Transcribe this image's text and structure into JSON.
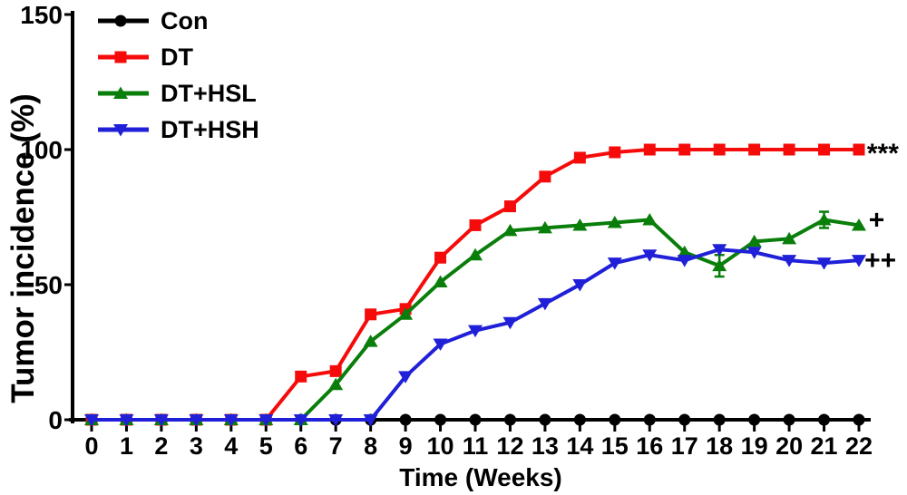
{
  "chart_data": {
    "type": "line",
    "title": "",
    "xlabel": "Time (Weeks)",
    "ylabel": "Tumor incidence (%)",
    "xlim": [
      0,
      22
    ],
    "ylim": [
      0,
      150
    ],
    "y_ticks": [
      0,
      50,
      100,
      150
    ],
    "x": [
      0,
      1,
      2,
      3,
      4,
      5,
      6,
      7,
      8,
      9,
      10,
      11,
      12,
      13,
      14,
      15,
      16,
      17,
      18,
      19,
      20,
      21,
      22
    ],
    "grid": false,
    "legend_position": "top-left",
    "background_color": "#FFFFFF",
    "axis_color": "#000000",
    "series": [
      {
        "name": "Con",
        "color": "#000000",
        "marker": "circle",
        "values": [
          0,
          0,
          0,
          0,
          0,
          0,
          0,
          0,
          0,
          0,
          0,
          0,
          0,
          0,
          0,
          0,
          0,
          0,
          0,
          0,
          0,
          0,
          0
        ]
      },
      {
        "name": "DT",
        "color": "#F60B0B",
        "marker": "square",
        "values": [
          0,
          0,
          0,
          0,
          0,
          0,
          16,
          18,
          39,
          41,
          60,
          72,
          79,
          90,
          97,
          99,
          100,
          100,
          100,
          100,
          100,
          100,
          100
        ]
      },
      {
        "name": "DT+HSL",
        "color": "#097E0A",
        "marker": "triangle-up",
        "values": [
          0,
          0,
          0,
          0,
          0,
          0,
          0,
          13,
          29,
          39,
          51,
          61,
          70,
          71,
          72,
          73,
          74,
          62,
          57,
          66,
          67,
          74,
          72
        ],
        "error_bars": [
          {
            "x": 18,
            "up": 4,
            "down": 4
          },
          {
            "x": 21,
            "up": 3,
            "down": 3
          }
        ]
      },
      {
        "name": "DT+HSH",
        "color": "#2020D8",
        "marker": "triangle-down",
        "values": [
          0,
          0,
          0,
          0,
          0,
          0,
          0,
          0,
          0,
          16,
          28,
          33,
          36,
          43,
          50,
          58,
          61,
          59,
          63,
          62,
          59,
          58,
          59
        ]
      }
    ],
    "annotations": [
      {
        "text": "***",
        "x": 22.23,
        "y": 100,
        "color": "#000000"
      },
      {
        "text": "+",
        "x": 22.28,
        "y": 74,
        "color": "#000000"
      },
      {
        "text": "++",
        "x": 22.16,
        "y": 59,
        "color": "#000000"
      }
    ]
  }
}
